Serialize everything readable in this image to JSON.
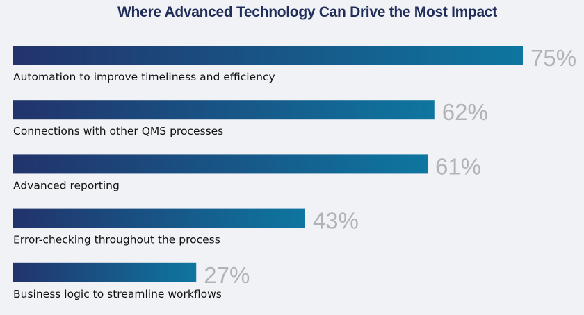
{
  "chart_data": {
    "type": "bar",
    "orientation": "horizontal",
    "title": "Where Advanced Technology Can Drive the Most Impact",
    "categories": [
      "Automation to improve timeliness and efficiency",
      "Connections with other QMS processes",
      "Advanced reporting",
      "Error-checking throughout the process",
      "Business logic to streamline workflows"
    ],
    "values": [
      75,
      62,
      61,
      43,
      27
    ],
    "value_labels": [
      "75%",
      "62%",
      "61%",
      "43%",
      "27%"
    ],
    "unit": "%",
    "xlabel": "",
    "ylabel": "",
    "xlim": [
      0,
      75
    ],
    "grid": false,
    "legend": "none",
    "colors": {
      "bar_start": "#22336b",
      "bar_end": "#0e76a0",
      "value_text": "#b3b3b6",
      "title": "#1f2d58",
      "label": "#111111",
      "background": "#f1f2f6"
    }
  }
}
